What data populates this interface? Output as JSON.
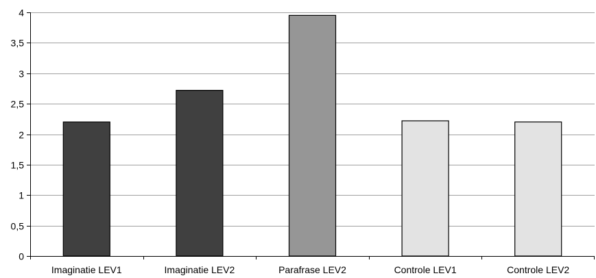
{
  "chart_data": {
    "type": "bar",
    "title": "",
    "xlabel": "",
    "ylabel": "",
    "categories": [
      "Imaginatie LEV1",
      "Imaginatie LEV2",
      "Parafrase LEV2",
      "Controle LEV1",
      "Controle LEV2"
    ],
    "values": [
      2.2,
      2.72,
      3.95,
      2.22,
      2.2
    ],
    "bar_colors": [
      "#404040",
      "#404040",
      "#969696",
      "#e3e3e3",
      "#e3e3e3"
    ],
    "ylim": [
      0,
      4
    ],
    "yticks": [
      0,
      0.5,
      1,
      1.5,
      2,
      2.5,
      3,
      3.5,
      4
    ],
    "ytick_labels": [
      "0",
      "0,5",
      "1",
      "1,5",
      "2",
      "2,5",
      "3",
      "3,5",
      "4"
    ],
    "grid": true,
    "legend": "none"
  }
}
